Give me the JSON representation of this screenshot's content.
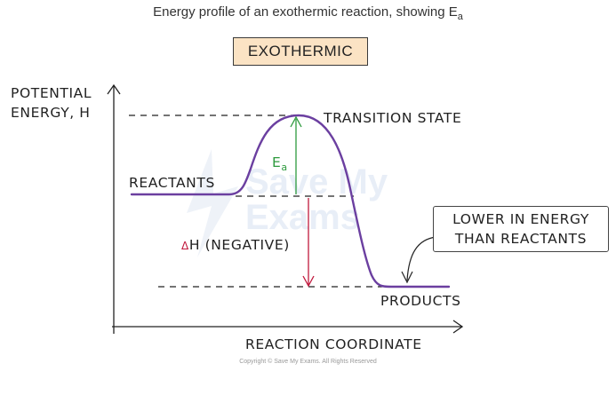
{
  "caption": "Energy profile of an exothermic reaction, showing Ea",
  "caption_text": "Energy profile of an exothermic reaction, showing E",
  "caption_sub": "a",
  "badge": "EXOTHERMIC",
  "y_axis_label_line1": "POTENTIAL",
  "y_axis_label_line2": "ENERGY, H",
  "x_axis_label": "REACTION COORDINATE",
  "transition_state": "TRANSITION STATE",
  "reactants": "REACTANTS",
  "products": "PRODUCTS",
  "ea_label_main": "E",
  "ea_label_sub": "a",
  "delta_h_symbol": "Δ",
  "delta_h_label": "H (NEGATIVE)",
  "note_line1": "LOWER IN ENERGY",
  "note_line2": "THAN REACTANTS",
  "watermark_line1": "Save My",
  "watermark_line2": "Exams",
  "copyright": "Copyright © Save My Exams. All Rights Reserved",
  "colors": {
    "curve": "#6b3fa0",
    "ea_arrow": "#2e9a3e",
    "delta_h_arrow": "#c0183c",
    "badge_fill": "#fbe3c4"
  }
}
